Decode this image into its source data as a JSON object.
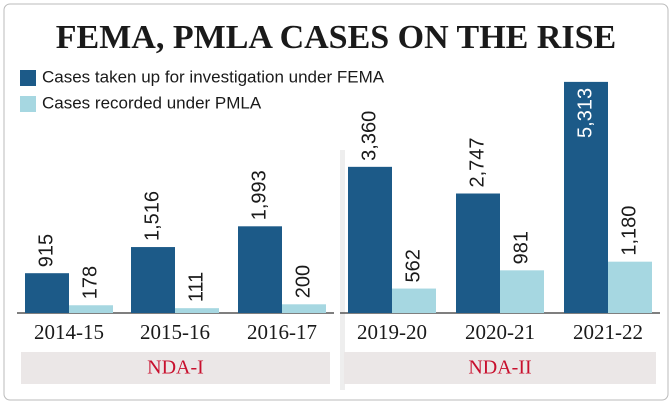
{
  "chart_data": {
    "type": "bar",
    "title": "FEMA, PMLA CASES ON THE RISE",
    "categories": [
      "2014-15",
      "2015-16",
      "2016-17",
      "2019-20",
      "2020-21",
      "2021-22"
    ],
    "groups": [
      {
        "label": "NDA-I",
        "categories": [
          "2014-15",
          "2015-16",
          "2016-17"
        ]
      },
      {
        "label": "NDA-II",
        "categories": [
          "2019-20",
          "2020-21",
          "2021-22"
        ]
      }
    ],
    "series": [
      {
        "name": "Cases taken up for investigation under FEMA",
        "color": "#1c5a88",
        "values": [
          915,
          1516,
          1993,
          3360,
          2747,
          5313
        ],
        "value_labels": [
          "915",
          "1,516",
          "1,993",
          "3,360",
          "2,747",
          "5,313"
        ]
      },
      {
        "name": "Cases recorded under PMLA",
        "color": "#a6d7e1",
        "values": [
          178,
          111,
          200,
          562,
          981,
          1180
        ],
        "value_labels": [
          "178",
          "111",
          "200",
          "562",
          "981",
          "1,180"
        ]
      }
    ]
  }
}
